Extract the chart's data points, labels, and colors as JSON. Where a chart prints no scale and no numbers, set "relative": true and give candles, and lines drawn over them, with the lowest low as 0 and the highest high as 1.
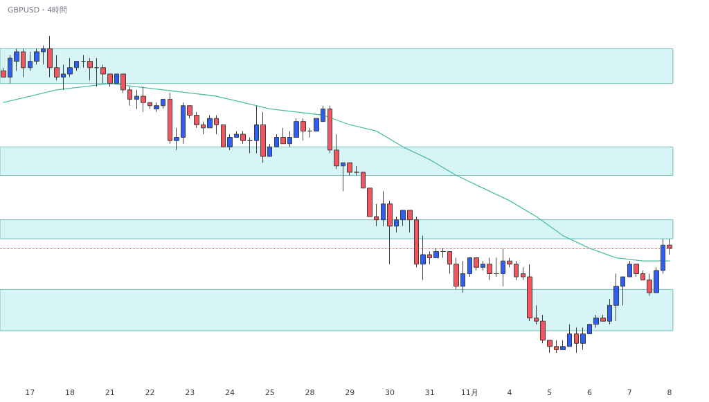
{
  "chart_data": {
    "type": "candlestick",
    "title": "GBPUSD・4時間",
    "relative": true,
    "marker": "none",
    "categories": [
      null,
      null,
      null,
      null,
      "17",
      null,
      null,
      null,
      null,
      null,
      "18",
      null,
      null,
      null,
      null,
      null,
      "21",
      null,
      null,
      null,
      null,
      null,
      "22",
      null,
      null,
      null,
      null,
      null,
      "23",
      null,
      null,
      null,
      null,
      null,
      "24",
      null,
      null,
      null,
      null,
      null,
      "25",
      null,
      null,
      null,
      null,
      null,
      "28",
      null,
      null,
      null,
      null,
      null,
      "29",
      null,
      null,
      null,
      null,
      null,
      "30",
      null,
      null,
      null,
      null,
      null,
      "31",
      null,
      null,
      null,
      null,
      null,
      "11月",
      null,
      null,
      null,
      null,
      null,
      "4",
      null,
      null,
      null,
      null,
      null,
      "5",
      null,
      null,
      null,
      null,
      null,
      "6",
      null,
      null,
      null,
      null,
      null,
      "7",
      null,
      null,
      null,
      null,
      null,
      "8"
    ],
    "ohlc": [
      [
        0.89,
        0.9,
        0.87,
        0.87
      ],
      [
        0.87,
        0.94,
        0.85,
        0.93
      ],
      [
        0.92,
        0.96,
        0.89,
        0.95
      ],
      [
        0.95,
        0.96,
        0.87,
        0.9
      ],
      [
        0.9,
        0.95,
        0.89,
        0.92
      ],
      [
        0.92,
        0.96,
        0.91,
        0.95
      ],
      [
        0.95,
        0.97,
        0.91,
        0.96
      ],
      [
        0.96,
        1.0,
        0.87,
        0.9
      ],
      [
        0.9,
        0.94,
        0.86,
        0.87
      ],
      [
        0.87,
        0.91,
        0.83,
        0.88
      ],
      [
        0.88,
        0.93,
        0.87,
        0.9
      ],
      [
        0.9,
        0.92,
        0.89,
        0.92
      ],
      [
        0.92,
        0.94,
        0.9,
        0.92
      ],
      [
        0.92,
        0.93,
        0.86,
        0.9
      ],
      [
        0.9,
        0.93,
        0.84,
        0.9
      ],
      [
        0.9,
        0.91,
        0.85,
        0.88
      ],
      [
        0.88,
        0.88,
        0.84,
        0.85
      ],
      [
        0.85,
        0.88,
        0.85,
        0.88
      ],
      [
        0.88,
        0.88,
        0.82,
        0.83
      ],
      [
        0.83,
        0.84,
        0.78,
        0.8
      ],
      [
        0.8,
        0.83,
        0.77,
        0.81
      ],
      [
        0.81,
        0.84,
        0.76,
        0.79
      ],
      [
        0.79,
        0.79,
        0.77,
        0.78
      ],
      [
        0.77,
        0.79,
        0.76,
        0.78
      ],
      [
        0.78,
        0.8,
        0.77,
        0.8
      ],
      [
        0.8,
        0.82,
        0.66,
        0.67
      ],
      [
        0.67,
        0.71,
        0.64,
        0.68
      ],
      [
        0.68,
        0.79,
        0.66,
        0.78
      ],
      [
        0.78,
        0.78,
        0.74,
        0.75
      ],
      [
        0.75,
        0.76,
        0.71,
        0.72
      ],
      [
        0.72,
        0.73,
        0.69,
        0.71
      ],
      [
        0.71,
        0.75,
        0.71,
        0.74
      ],
      [
        0.74,
        0.75,
        0.69,
        0.72
      ],
      [
        0.72,
        0.72,
        0.65,
        0.65
      ],
      [
        0.65,
        0.69,
        0.64,
        0.68
      ],
      [
        0.68,
        0.7,
        0.68,
        0.69
      ],
      [
        0.69,
        0.7,
        0.66,
        0.67
      ],
      [
        0.67,
        0.68,
        0.63,
        0.67
      ],
      [
        0.67,
        0.78,
        0.63,
        0.72
      ],
      [
        0.72,
        0.76,
        0.6,
        0.62
      ],
      [
        0.62,
        0.66,
        0.62,
        0.65
      ],
      [
        0.65,
        0.69,
        0.65,
        0.68
      ],
      [
        0.68,
        0.71,
        0.66,
        0.66
      ],
      [
        0.66,
        0.7,
        0.65,
        0.68
      ],
      [
        0.68,
        0.74,
        0.68,
        0.73
      ],
      [
        0.73,
        0.74,
        0.67,
        0.7
      ],
      [
        0.7,
        0.71,
        0.68,
        0.7
      ],
      [
        0.7,
        0.74,
        0.7,
        0.74
      ],
      [
        0.73,
        0.78,
        0.73,
        0.77
      ],
      [
        0.77,
        0.78,
        0.63,
        0.64
      ],
      [
        0.64,
        0.69,
        0.58,
        0.59
      ],
      [
        0.59,
        0.6,
        0.51,
        0.6
      ],
      [
        0.6,
        0.6,
        0.56,
        0.57
      ],
      [
        0.57,
        0.59,
        0.56,
        0.57
      ],
      [
        0.57,
        0.57,
        0.52,
        0.52
      ],
      [
        0.52,
        0.52,
        0.43,
        0.43
      ],
      [
        0.43,
        0.47,
        0.4,
        0.42
      ],
      [
        0.42,
        0.51,
        0.4,
        0.47
      ],
      [
        0.47,
        0.48,
        0.28,
        0.4
      ],
      [
        0.4,
        0.43,
        0.38,
        0.42
      ],
      [
        0.42,
        0.45,
        0.4,
        0.45
      ],
      [
        0.45,
        0.45,
        0.38,
        0.42
      ],
      [
        0.42,
        0.43,
        0.27,
        0.28
      ],
      [
        0.28,
        0.37,
        0.23,
        0.31
      ],
      [
        0.31,
        0.32,
        0.28,
        0.3
      ],
      [
        0.3,
        0.33,
        0.3,
        0.32
      ],
      [
        0.32,
        0.33,
        0.3,
        0.32
      ],
      [
        0.32,
        0.32,
        0.25,
        0.28
      ],
      [
        0.28,
        0.3,
        0.2,
        0.21
      ],
      [
        0.21,
        0.29,
        0.19,
        0.25
      ],
      [
        0.25,
        0.3,
        0.24,
        0.3
      ],
      [
        0.3,
        0.3,
        0.26,
        0.27
      ],
      [
        0.27,
        0.29,
        0.26,
        0.28
      ],
      [
        0.28,
        0.3,
        0.23,
        0.25
      ],
      [
        0.25,
        0.3,
        0.24,
        0.25
      ],
      [
        0.25,
        0.33,
        0.21,
        0.29
      ],
      [
        0.29,
        0.3,
        0.27,
        0.28
      ],
      [
        0.28,
        0.29,
        0.23,
        0.24
      ],
      [
        0.25,
        0.27,
        0.23,
        0.24
      ],
      [
        0.24,
        0.28,
        0.1,
        0.11
      ],
      [
        0.11,
        0.15,
        0.09,
        0.1
      ],
      [
        0.1,
        0.12,
        0.03,
        0.04
      ],
      [
        0.04,
        0.04,
        0.0,
        0.02
      ],
      [
        0.02,
        0.04,
        0.0,
        0.01
      ],
      [
        0.01,
        0.04,
        0.01,
        0.02
      ],
      [
        0.02,
        0.09,
        0.02,
        0.06
      ],
      [
        0.06,
        0.08,
        0.0,
        0.03
      ],
      [
        0.03,
        0.08,
        0.01,
        0.06
      ],
      [
        0.06,
        0.09,
        0.06,
        0.09
      ],
      [
        0.09,
        0.12,
        0.08,
        0.11
      ],
      [
        0.11,
        0.12,
        0.1,
        0.1
      ],
      [
        0.1,
        0.17,
        0.09,
        0.15
      ],
      [
        0.15,
        0.25,
        0.1,
        0.21
      ],
      [
        0.21,
        0.24,
        0.15,
        0.24
      ],
      [
        0.24,
        0.29,
        0.24,
        0.28
      ],
      [
        0.28,
        0.28,
        0.24,
        0.25
      ],
      [
        0.25,
        0.26,
        0.23,
        0.23
      ],
      [
        0.23,
        0.25,
        0.18,
        0.19
      ],
      [
        0.19,
        0.27,
        0.19,
        0.26
      ],
      [
        0.26,
        0.36,
        0.25,
        0.34
      ],
      [
        0.34,
        0.36,
        0.31,
        0.33
      ]
    ],
    "series": [
      {
        "type": "line",
        "color": "#4cbfa6",
        "values": [
          0.79,
          null,
          null,
          null,
          0.81,
          null,
          null,
          null,
          0.83,
          null,
          null,
          null,
          0.84,
          null,
          null,
          null,
          0.85,
          null,
          null,
          null,
          0.84,
          null,
          null,
          null,
          0.83,
          null,
          null,
          null,
          0.82,
          null,
          null,
          null,
          0.81,
          null,
          null,
          null,
          0.79,
          null,
          null,
          null,
          0.77,
          null,
          null,
          null,
          0.76,
          null,
          null,
          null,
          0.75,
          null,
          null,
          null,
          0.72,
          null,
          null,
          null,
          0.7,
          null,
          null,
          null,
          0.65,
          null,
          null,
          null,
          0.61,
          null,
          null,
          null,
          0.56,
          null,
          null,
          null,
          0.52,
          null,
          null,
          null,
          0.48,
          null,
          null,
          null,
          0.43,
          null,
          null,
          null,
          0.37,
          null,
          null,
          null,
          0.33,
          null,
          null,
          null,
          0.3,
          null,
          null,
          null,
          0.29,
          null,
          null,
          null,
          0.29
        ]
      }
    ],
    "bands": [
      {
        "axis": "y",
        "from": 0.85,
        "to": 0.96,
        "color": "#d7f4f7"
      },
      {
        "axis": "y",
        "from": 0.56,
        "to": 0.65,
        "color": "#d7f4f7"
      },
      {
        "axis": "y",
        "from": 0.36,
        "to": 0.42,
        "color": "#d7f4f7"
      },
      {
        "axis": "y",
        "from": 0.07,
        "to": 0.2,
        "color": "#d7f4f7"
      }
    ],
    "ref_lines": [
      {
        "axis": "y",
        "value": 0.33,
        "color": "#f0616a",
        "line_style": "dotted"
      }
    ]
  }
}
